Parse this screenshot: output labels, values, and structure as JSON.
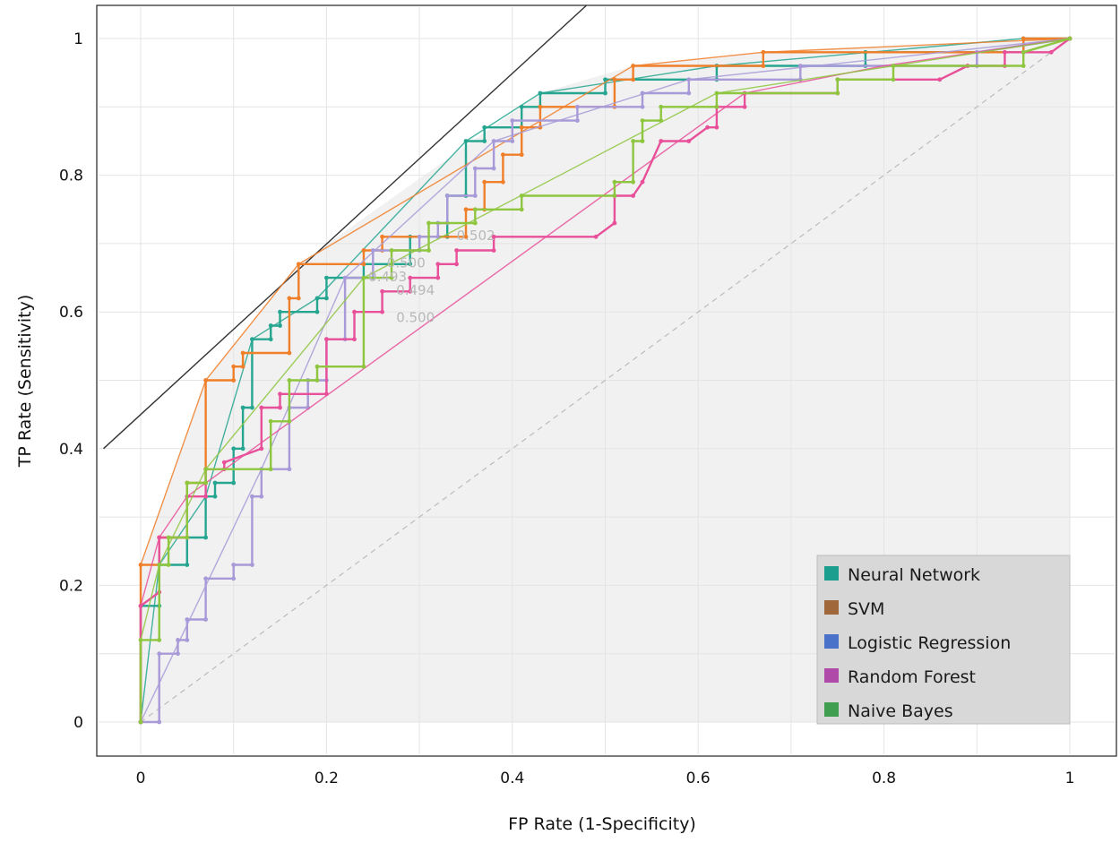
{
  "chart_data": {
    "type": "line",
    "title": "",
    "xlabel": "FP Rate (1-Specificity)",
    "ylabel": "TP Rate (Sensitivity)",
    "xlim": [
      0,
      1
    ],
    "ylim": [
      0,
      1
    ],
    "x_ticks": [
      "0",
      "0.2",
      "0.4",
      "0.6",
      "0.8",
      "1"
    ],
    "y_ticks": [
      "0",
      "0.2",
      "0.4",
      "0.6",
      "0.8",
      "1"
    ],
    "grid": true,
    "legend_position": "bottom-right",
    "iso_performance_line": [
      [
        -0.04,
        0.4
      ],
      [
        0.485,
        1.055
      ]
    ],
    "diagonal": [
      [
        0,
        0
      ],
      [
        1,
        1
      ]
    ],
    "threshold_labels": [
      {
        "text": "0.502",
        "x": 0.34,
        "y": 0.705
      },
      {
        "text": "0.500",
        "x": 0.265,
        "y": 0.665
      },
      {
        "text": "0.493",
        "x": 0.245,
        "y": 0.645
      },
      {
        "text": "0.494",
        "x": 0.275,
        "y": 0.625
      },
      {
        "text": "0.500",
        "x": 0.275,
        "y": 0.585
      }
    ],
    "series": [
      {
        "name": "Neural Network",
        "legend_color": "#1b9e8e",
        "line_color": "#26a690",
        "roc": [
          [
            0,
            0
          ],
          [
            0,
            0.17
          ],
          [
            0.02,
            0.17
          ],
          [
            0.02,
            0.23
          ],
          [
            0.05,
            0.23
          ],
          [
            0.05,
            0.27
          ],
          [
            0.07,
            0.27
          ],
          [
            0.07,
            0.33
          ],
          [
            0.08,
            0.33
          ],
          [
            0.08,
            0.35
          ],
          [
            0.1,
            0.35
          ],
          [
            0.1,
            0.4
          ],
          [
            0.11,
            0.4
          ],
          [
            0.11,
            0.46
          ],
          [
            0.12,
            0.46
          ],
          [
            0.12,
            0.56
          ],
          [
            0.14,
            0.56
          ],
          [
            0.14,
            0.58
          ],
          [
            0.15,
            0.58
          ],
          [
            0.15,
            0.6
          ],
          [
            0.19,
            0.6
          ],
          [
            0.19,
            0.62
          ],
          [
            0.2,
            0.62
          ],
          [
            0.2,
            0.65
          ],
          [
            0.24,
            0.65
          ],
          [
            0.24,
            0.67
          ],
          [
            0.29,
            0.67
          ],
          [
            0.29,
            0.71
          ],
          [
            0.33,
            0.71
          ],
          [
            0.33,
            0.77
          ],
          [
            0.35,
            0.77
          ],
          [
            0.35,
            0.85
          ],
          [
            0.37,
            0.85
          ],
          [
            0.37,
            0.87
          ],
          [
            0.41,
            0.87
          ],
          [
            0.41,
            0.9
          ],
          [
            0.43,
            0.9
          ],
          [
            0.43,
            0.92
          ],
          [
            0.5,
            0.92
          ],
          [
            0.5,
            0.94
          ],
          [
            0.62,
            0.94
          ],
          [
            0.62,
            0.96
          ],
          [
            0.78,
            0.96
          ],
          [
            0.78,
            0.98
          ],
          [
            0.95,
            0.98
          ],
          [
            0.95,
            1
          ],
          [
            1,
            1
          ]
        ],
        "hull": [
          [
            0,
            0
          ],
          [
            0.02,
            0.23
          ],
          [
            0.07,
            0.33
          ],
          [
            0.12,
            0.56
          ],
          [
            0.19,
            0.62
          ],
          [
            0.35,
            0.85
          ],
          [
            0.43,
            0.92
          ],
          [
            0.62,
            0.96
          ],
          [
            0.95,
            1
          ],
          [
            1,
            1
          ]
        ]
      },
      {
        "name": "SVM",
        "legend_color": "#a0673a",
        "line_color": "#f07f2a",
        "roc": [
          [
            0,
            0
          ],
          [
            0,
            0.23
          ],
          [
            0.02,
            0.23
          ],
          [
            0.02,
            0.27
          ],
          [
            0.05,
            0.27
          ],
          [
            0.05,
            0.35
          ],
          [
            0.07,
            0.35
          ],
          [
            0.07,
            0.5
          ],
          [
            0.1,
            0.5
          ],
          [
            0.1,
            0.52
          ],
          [
            0.11,
            0.52
          ],
          [
            0.11,
            0.54
          ],
          [
            0.16,
            0.54
          ],
          [
            0.16,
            0.62
          ],
          [
            0.17,
            0.62
          ],
          [
            0.17,
            0.67
          ],
          [
            0.24,
            0.67
          ],
          [
            0.24,
            0.69
          ],
          [
            0.26,
            0.69
          ],
          [
            0.26,
            0.71
          ],
          [
            0.35,
            0.71
          ],
          [
            0.35,
            0.75
          ],
          [
            0.37,
            0.75
          ],
          [
            0.37,
            0.79
          ],
          [
            0.39,
            0.79
          ],
          [
            0.39,
            0.83
          ],
          [
            0.41,
            0.83
          ],
          [
            0.41,
            0.87
          ],
          [
            0.43,
            0.87
          ],
          [
            0.43,
            0.9
          ],
          [
            0.51,
            0.9
          ],
          [
            0.51,
            0.94
          ],
          [
            0.53,
            0.94
          ],
          [
            0.53,
            0.96
          ],
          [
            0.67,
            0.96
          ],
          [
            0.67,
            0.98
          ],
          [
            0.95,
            0.98
          ],
          [
            0.95,
            1
          ],
          [
            1,
            1
          ]
        ],
        "hull": [
          [
            0,
            0
          ],
          [
            0,
            0.23
          ],
          [
            0.07,
            0.5
          ],
          [
            0.17,
            0.67
          ],
          [
            0.53,
            0.96
          ],
          [
            0.67,
            0.98
          ],
          [
            1,
            1
          ]
        ]
      },
      {
        "name": "Logistic Regression",
        "legend_color": "#4a72c8",
        "line_color": "#a89ad8",
        "roc": [
          [
            0,
            0
          ],
          [
            0.02,
            0
          ],
          [
            0.02,
            0.1
          ],
          [
            0.04,
            0.1
          ],
          [
            0.04,
            0.12
          ],
          [
            0.05,
            0.12
          ],
          [
            0.05,
            0.15
          ],
          [
            0.07,
            0.15
          ],
          [
            0.07,
            0.21
          ],
          [
            0.1,
            0.21
          ],
          [
            0.1,
            0.23
          ],
          [
            0.12,
            0.23
          ],
          [
            0.12,
            0.33
          ],
          [
            0.13,
            0.33
          ],
          [
            0.13,
            0.37
          ],
          [
            0.16,
            0.37
          ],
          [
            0.16,
            0.46
          ],
          [
            0.18,
            0.46
          ],
          [
            0.18,
            0.5
          ],
          [
            0.2,
            0.5
          ],
          [
            0.2,
            0.56
          ],
          [
            0.22,
            0.56
          ],
          [
            0.22,
            0.65
          ],
          [
            0.25,
            0.65
          ],
          [
            0.25,
            0.69
          ],
          [
            0.3,
            0.69
          ],
          [
            0.3,
            0.71
          ],
          [
            0.32,
            0.71
          ],
          [
            0.32,
            0.73
          ],
          [
            0.33,
            0.73
          ],
          [
            0.33,
            0.77
          ],
          [
            0.36,
            0.77
          ],
          [
            0.36,
            0.81
          ],
          [
            0.38,
            0.81
          ],
          [
            0.38,
            0.85
          ],
          [
            0.4,
            0.85
          ],
          [
            0.4,
            0.88
          ],
          [
            0.47,
            0.88
          ],
          [
            0.47,
            0.9
          ],
          [
            0.54,
            0.9
          ],
          [
            0.54,
            0.92
          ],
          [
            0.59,
            0.92
          ],
          [
            0.59,
            0.94
          ],
          [
            0.71,
            0.94
          ],
          [
            0.71,
            0.96
          ],
          [
            0.9,
            0.96
          ],
          [
            0.9,
            0.98
          ],
          [
            1,
            1
          ]
        ],
        "hull": [
          [
            0,
            0
          ],
          [
            0.13,
            0.37
          ],
          [
            0.22,
            0.65
          ],
          [
            0.38,
            0.85
          ],
          [
            0.59,
            0.94
          ],
          [
            1,
            1
          ]
        ]
      },
      {
        "name": "Random Forest",
        "legend_color": "#b04aa8",
        "line_color": "#e8509a",
        "roc": [
          [
            0,
            0
          ],
          [
            0,
            0.17
          ],
          [
            0.02,
            0.19
          ],
          [
            0.02,
            0.27
          ],
          [
            0.05,
            0.27
          ],
          [
            0.05,
            0.33
          ],
          [
            0.07,
            0.33
          ],
          [
            0.07,
            0.37
          ],
          [
            0.09,
            0.37
          ],
          [
            0.09,
            0.38
          ],
          [
            0.13,
            0.4
          ],
          [
            0.13,
            0.46
          ],
          [
            0.15,
            0.46
          ],
          [
            0.15,
            0.48
          ],
          [
            0.2,
            0.48
          ],
          [
            0.2,
            0.56
          ],
          [
            0.23,
            0.56
          ],
          [
            0.23,
            0.6
          ],
          [
            0.26,
            0.6
          ],
          [
            0.26,
            0.63
          ],
          [
            0.29,
            0.63
          ],
          [
            0.29,
            0.65
          ],
          [
            0.32,
            0.65
          ],
          [
            0.32,
            0.67
          ],
          [
            0.34,
            0.67
          ],
          [
            0.34,
            0.69
          ],
          [
            0.38,
            0.69
          ],
          [
            0.38,
            0.71
          ],
          [
            0.49,
            0.71
          ],
          [
            0.51,
            0.73
          ],
          [
            0.51,
            0.77
          ],
          [
            0.53,
            0.77
          ],
          [
            0.54,
            0.79
          ],
          [
            0.56,
            0.85
          ],
          [
            0.59,
            0.85
          ],
          [
            0.61,
            0.87
          ],
          [
            0.62,
            0.87
          ],
          [
            0.62,
            0.9
          ],
          [
            0.65,
            0.9
          ],
          [
            0.65,
            0.92
          ],
          [
            0.75,
            0.92
          ],
          [
            0.75,
            0.94
          ],
          [
            0.86,
            0.94
          ],
          [
            0.89,
            0.96
          ],
          [
            0.93,
            0.96
          ],
          [
            0.93,
            0.98
          ],
          [
            0.98,
            0.98
          ],
          [
            1,
            1
          ]
        ],
        "hull": [
          [
            0,
            0
          ],
          [
            0,
            0.17
          ],
          [
            0.02,
            0.27
          ],
          [
            0.05,
            0.33
          ],
          [
            0.65,
            0.92
          ],
          [
            0.8,
            0.96
          ],
          [
            1,
            1
          ]
        ]
      },
      {
        "name": "Naive Bayes",
        "legend_color": "#3f9e4f",
        "line_color": "#8ec63f",
        "roc": [
          [
            0,
            0
          ],
          [
            0,
            0.12
          ],
          [
            0.02,
            0.12
          ],
          [
            0.02,
            0.23
          ],
          [
            0.03,
            0.23
          ],
          [
            0.03,
            0.27
          ],
          [
            0.05,
            0.27
          ],
          [
            0.05,
            0.35
          ],
          [
            0.07,
            0.35
          ],
          [
            0.07,
            0.37
          ],
          [
            0.14,
            0.37
          ],
          [
            0.14,
            0.44
          ],
          [
            0.16,
            0.44
          ],
          [
            0.16,
            0.5
          ],
          [
            0.19,
            0.5
          ],
          [
            0.19,
            0.52
          ],
          [
            0.24,
            0.52
          ],
          [
            0.24,
            0.65
          ],
          [
            0.27,
            0.65
          ],
          [
            0.27,
            0.69
          ],
          [
            0.31,
            0.69
          ],
          [
            0.31,
            0.73
          ],
          [
            0.36,
            0.73
          ],
          [
            0.36,
            0.75
          ],
          [
            0.41,
            0.75
          ],
          [
            0.41,
            0.77
          ],
          [
            0.51,
            0.77
          ],
          [
            0.51,
            0.79
          ],
          [
            0.53,
            0.79
          ],
          [
            0.53,
            0.85
          ],
          [
            0.54,
            0.85
          ],
          [
            0.54,
            0.88
          ],
          [
            0.56,
            0.88
          ],
          [
            0.56,
            0.9
          ],
          [
            0.62,
            0.9
          ],
          [
            0.62,
            0.92
          ],
          [
            0.75,
            0.92
          ],
          [
            0.75,
            0.94
          ],
          [
            0.81,
            0.94
          ],
          [
            0.81,
            0.96
          ],
          [
            0.95,
            0.96
          ],
          [
            0.95,
            0.98
          ],
          [
            1,
            1
          ]
        ],
        "hull": [
          [
            0,
            0
          ],
          [
            0,
            0.12
          ],
          [
            0.02,
            0.23
          ],
          [
            0.07,
            0.37
          ],
          [
            0.24,
            0.65
          ],
          [
            0.62,
            0.92
          ],
          [
            0.81,
            0.96
          ],
          [
            1,
            1
          ]
        ]
      }
    ]
  }
}
